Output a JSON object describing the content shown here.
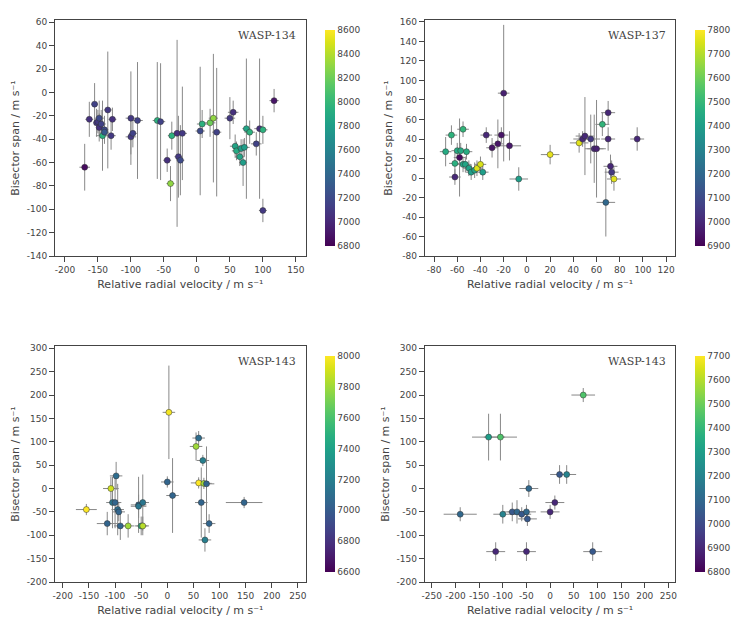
{
  "chart_data": [
    {
      "type": "scatter",
      "annotations": [
        "WASP-134"
      ],
      "xlabel": "Relative radial velocity / m s⁻¹",
      "ylabel": "Bisector span / m s⁻¹",
      "x": [
        -170,
        -163,
        -155,
        -152,
        -150,
        -148,
        -148,
        -145,
        -143,
        -140,
        -140,
        -135,
        -130,
        -128,
        -100,
        -100,
        -97,
        -90,
        -60,
        -55,
        -45,
        -40,
        -38,
        -30,
        -28,
        -25,
        -22,
        5,
        8,
        20,
        25,
        30,
        50,
        55,
        58,
        60,
        65,
        67,
        70,
        72,
        75,
        80,
        90,
        95,
        100,
        100,
        117
      ],
      "values": [
        -64,
        -23,
        -10,
        -26,
        -25,
        -30,
        -22,
        -27,
        -37,
        -32,
        -34,
        -15,
        -37,
        -23,
        -22,
        -38,
        -35,
        -24,
        -24,
        -25,
        -58,
        -78,
        -37,
        -35,
        -55,
        -58,
        -35,
        -33,
        -27,
        -26,
        -22,
        -34,
        -22,
        -17,
        -46,
        -50,
        -55,
        -48,
        -60,
        -47,
        -31,
        -34,
        -44,
        -31,
        -32,
        -101,
        -7
      ],
      "xerr": [
        8,
        6,
        5,
        5,
        6,
        5,
        7,
        7,
        10,
        6,
        7,
        6,
        7,
        6,
        8,
        8,
        6,
        8,
        7,
        7,
        6,
        6,
        6,
        7,
        6,
        6,
        7,
        7,
        8,
        8,
        7,
        7,
        8,
        8,
        8,
        7,
        7,
        9,
        6,
        8,
        6,
        8,
        8,
        8,
        7,
        6,
        7
      ],
      "yerr": [
        20,
        15,
        18,
        12,
        10,
        12,
        15,
        12,
        30,
        12,
        8,
        50,
        12,
        10,
        40,
        15,
        12,
        50,
        50,
        50,
        10,
        15,
        12,
        80,
        35,
        30,
        40,
        55,
        12,
        12,
        55,
        55,
        18,
        10,
        10,
        8,
        8,
        8,
        20,
        8,
        60,
        10,
        10,
        60,
        12,
        10,
        10
      ],
      "bjd": [
        6850,
        7050,
        7150,
        7100,
        7100,
        7050,
        7200,
        7150,
        7950,
        7200,
        7300,
        7100,
        7100,
        7050,
        7100,
        7100,
        7150,
        7150,
        7950,
        7150,
        7050,
        8300,
        7950,
        7050,
        7100,
        7200,
        7100,
        7200,
        7950,
        8200,
        8300,
        7150,
        7100,
        7050,
        7850,
        7900,
        7850,
        7800,
        7800,
        7800,
        7850,
        7950,
        7150,
        7050,
        7950,
        7100,
        6900
      ],
      "xlim": [
        -215,
        165
      ],
      "xticks": [
        -200,
        -150,
        -100,
        -50,
        0,
        50,
        100,
        150
      ],
      "ylim": [
        -140,
        62
      ],
      "yticks": [
        -140,
        -120,
        -100,
        -80,
        -60,
        -40,
        -20,
        0,
        20,
        40,
        60
      ],
      "colorbar_range": [
        6800,
        8600
      ],
      "colorbar_ticks": [
        6800,
        7000,
        7200,
        7400,
        7600,
        7800,
        8000,
        8200,
        8400,
        8600
      ],
      "grid": false
    },
    {
      "type": "scatter",
      "annotations": [
        "WASP-137"
      ],
      "xlabel": "Relative radial velocity / m s⁻¹",
      "ylabel": "Bisector span / m s⁻¹",
      "x": [
        -70,
        -65,
        -62,
        -62,
        -60,
        -58,
        -57,
        -55,
        -55,
        -53,
        -52,
        -50,
        -48,
        -45,
        -43,
        -40,
        -38,
        -35,
        -30,
        -25,
        -22,
        -20,
        -15,
        -7,
        20,
        45,
        48,
        50,
        55,
        58,
        60,
        65,
        68,
        70,
        70,
        72,
        73,
        75,
        95
      ],
      "values": [
        27,
        44,
        15,
        1,
        28,
        21,
        28,
        50,
        14,
        14,
        27,
        10,
        6,
        8,
        10,
        14,
        6,
        44,
        31,
        35,
        44,
        87,
        33,
        -1,
        24,
        36,
        40,
        43,
        40,
        30,
        30,
        55,
        -25,
        67,
        40,
        12,
        6,
        -1,
        40
      ],
      "xerr": [
        5,
        5,
        5,
        5,
        5,
        5,
        5,
        5,
        5,
        5,
        5,
        5,
        5,
        5,
        5,
        5,
        5,
        5,
        5,
        5,
        6,
        5,
        10,
        8,
        8,
        8,
        8,
        8,
        8,
        8,
        8,
        6,
        8,
        6,
        6,
        6,
        6,
        6,
        6
      ],
      "yerr": [
        15,
        10,
        12,
        8,
        8,
        40,
        8,
        8,
        8,
        8,
        8,
        8,
        8,
        8,
        8,
        8,
        8,
        8,
        10,
        25,
        8,
        70,
        15,
        12,
        10,
        10,
        8,
        40,
        25,
        35,
        50,
        12,
        35,
        12,
        12,
        12,
        12,
        12,
        12
      ],
      "bjd": [
        7450,
        7480,
        7470,
        7000,
        7450,
        6920,
        7450,
        7490,
        7440,
        7430,
        7460,
        7420,
        7410,
        7420,
        7750,
        7750,
        7400,
        7000,
        6950,
        6950,
        6950,
        6980,
        6960,
        7400,
        7770,
        7760,
        7000,
        7000,
        7050,
        7000,
        6980,
        7490,
        7200,
        7000,
        7000,
        7000,
        7050,
        7760,
        7000
      ],
      "xlim": [
        -88,
        128
      ],
      "xticks": [
        -80,
        -60,
        -40,
        -20,
        0,
        20,
        40,
        60,
        80,
        100,
        120
      ],
      "ylim": [
        -80,
        162
      ],
      "yticks": [
        -80,
        -60,
        -40,
        -20,
        0,
        20,
        40,
        60,
        80,
        100,
        120,
        140,
        160
      ],
      "colorbar_range": [
        6900,
        7800
      ],
      "colorbar_ticks": [
        6900,
        7000,
        7100,
        7200,
        7300,
        7400,
        7500,
        7600,
        7700,
        7800
      ],
      "grid": false
    },
    {
      "type": "scatter",
      "annotations": [
        "WASP-143"
      ],
      "xlabel": "Relative radial velocity / m s⁻¹",
      "ylabel": "Bisector span / m s⁻¹",
      "x": [
        -155,
        -115,
        -108,
        -105,
        -100,
        -98,
        -95,
        -93,
        -90,
        -75,
        -55,
        -55,
        -50,
        -47,
        -47,
        0,
        3,
        10,
        55,
        60,
        60,
        65,
        68,
        70,
        72,
        75,
        80,
        147
      ],
      "values": [
        -45,
        -75,
        0,
        -30,
        -30,
        27,
        -45,
        -50,
        -80,
        -80,
        -35,
        -38,
        -80,
        -30,
        -80,
        14,
        163,
        -15,
        90,
        12,
        108,
        -30,
        60,
        11,
        -110,
        10,
        -75,
        -30
      ],
      "xerr": [
        20,
        20,
        15,
        12,
        12,
        12,
        12,
        12,
        12,
        12,
        15,
        15,
        12,
        12,
        12,
        12,
        12,
        12,
        12,
        15,
        12,
        12,
        12,
        15,
        12,
        15,
        12,
        35
      ],
      "yerr": [
        12,
        25,
        25,
        55,
        55,
        30,
        55,
        20,
        30,
        25,
        60,
        25,
        20,
        60,
        20,
        12,
        100,
        80,
        30,
        12,
        15,
        75,
        12,
        12,
        25,
        80,
        20,
        12
      ],
      "bjd": [
        8000,
        7050,
        7900,
        7150,
        7050,
        7100,
        7100,
        7050,
        7050,
        7800,
        7050,
        7150,
        7450,
        7150,
        7850,
        7050,
        7980,
        7050,
        7800,
        8000,
        7100,
        7050,
        7200,
        7800,
        7200,
        7050,
        7050,
        7050
      ],
      "xlim": [
        -215,
        265
      ],
      "xticks": [
        -200,
        -150,
        -100,
        -50,
        0,
        50,
        100,
        150,
        200,
        250
      ],
      "ylim": [
        -200,
        305
      ],
      "yticks": [
        -200,
        -150,
        -100,
        -50,
        0,
        50,
        100,
        150,
        200,
        250,
        300
      ],
      "colorbar_range": [
        6600,
        8000
      ],
      "colorbar_ticks": [
        6600,
        6800,
        7000,
        7200,
        7400,
        7600,
        7800,
        8000
      ],
      "grid": false
    },
    {
      "type": "scatter",
      "annotations": [
        "WASP-143"
      ],
      "xlabel": "Relative radial velocity / m s⁻¹",
      "ylabel": "Bisector span / m s⁻¹",
      "x": [
        -190,
        -130,
        -100,
        -80,
        -70,
        -60,
        -50,
        -48,
        -45,
        0,
        10,
        20,
        35,
        -115,
        -50,
        70,
        90,
        -105
      ],
      "values": [
        -55,
        110,
        -55,
        -50,
        -50,
        -55,
        -50,
        -65,
        0,
        -50,
        -30,
        30,
        30,
        -135,
        -135,
        200,
        -135,
        110
      ],
      "xerr": [
        35,
        35,
        20,
        20,
        20,
        20,
        20,
        20,
        20,
        20,
        20,
        20,
        20,
        20,
        20,
        25,
        20,
        35
      ],
      "yerr": [
        15,
        50,
        20,
        20,
        25,
        15,
        15,
        15,
        18,
        15,
        15,
        20,
        20,
        20,
        20,
        15,
        20,
        50
      ],
      "bjd": [
        7100,
        7300,
        7200,
        7050,
        7100,
        7050,
        7100,
        7050,
        7100,
        6900,
        6900,
        7050,
        7200,
        6900,
        6900,
        7450,
        7050,
        7450
      ],
      "xlim": [
        -265,
        265
      ],
      "xticks": [
        -250,
        -200,
        -150,
        -100,
        -50,
        0,
        50,
        100,
        150,
        200,
        250
      ],
      "ylim": [
        -200,
        305
      ],
      "yticks": [
        -200,
        -150,
        -100,
        -50,
        0,
        50,
        100,
        150,
        200,
        250,
        300
      ],
      "colorbar_range": [
        6800,
        7700
      ],
      "colorbar_ticks": [
        6800,
        6900,
        7000,
        7100,
        7200,
        7300,
        7400,
        7500,
        7600,
        7700
      ],
      "grid": false
    }
  ]
}
